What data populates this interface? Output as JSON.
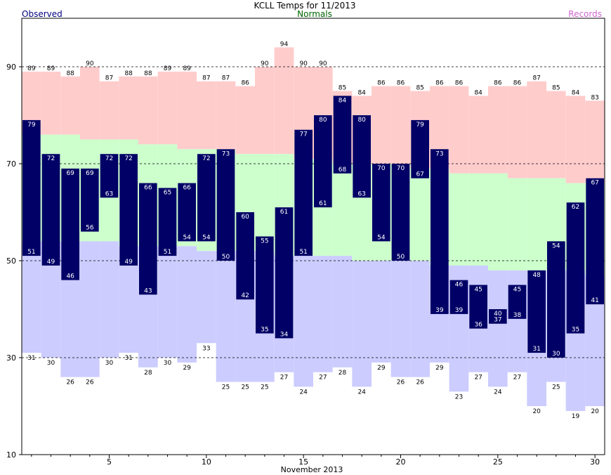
{
  "chart_data": {
    "type": "bar",
    "title": "KCLL Temps for 11/2013",
    "xlabel": "November 2013",
    "ylabel": "",
    "legend": {
      "observed": "Observed",
      "normals": "Normals",
      "records": "Records"
    },
    "colors": {
      "observed_bar": "#000066",
      "normal_band": "#ccffcc",
      "record_high_band": "#ffcccc",
      "record_low_band": "#ccccff",
      "observed_text": "#000080",
      "normals_text": "#006600",
      "records_text": "#cc66cc"
    },
    "ylim": [
      10,
      100
    ],
    "yticks": [
      10,
      30,
      50,
      70,
      90
    ],
    "xticks": [
      5,
      10,
      15,
      20,
      25,
      30
    ],
    "days": [
      1,
      2,
      3,
      4,
      5,
      6,
      7,
      8,
      9,
      10,
      11,
      12,
      13,
      14,
      15,
      16,
      17,
      18,
      19,
      20,
      21,
      22,
      23,
      24,
      25,
      26,
      27,
      28,
      29,
      30
    ],
    "observed_high": [
      79,
      72,
      69,
      69,
      72,
      72,
      66,
      65,
      66,
      72,
      73,
      60,
      55,
      61,
      77,
      80,
      84,
      80,
      70,
      70,
      79,
      73,
      46,
      45,
      40,
      45,
      48,
      54,
      62,
      67
    ],
    "observed_low": [
      51,
      49,
      46,
      56,
      63,
      49,
      43,
      51,
      54,
      54,
      50,
      42,
      35,
      34,
      51,
      61,
      68,
      63,
      54,
      50,
      67,
      39,
      39,
      36,
      37,
      38,
      31,
      30,
      35,
      41
    ],
    "record_high": [
      89,
      89,
      88,
      90,
      87,
      88,
      88,
      89,
      89,
      87,
      87,
      86,
      90,
      94,
      90,
      90,
      85,
      84,
      86,
      86,
      85,
      86,
      86,
      84,
      86,
      86,
      87,
      85,
      84,
      83
    ],
    "record_low": [
      31,
      30,
      26,
      26,
      30,
      31,
      28,
      30,
      29,
      33,
      25,
      25,
      25,
      27,
      24,
      27,
      28,
      24,
      29,
      26,
      26,
      29,
      23,
      27,
      24,
      27,
      20,
      25,
      19,
      20
    ],
    "normal_high": [
      76,
      76,
      76,
      75,
      75,
      75,
      74,
      74,
      73,
      73,
      73,
      72,
      72,
      72,
      71,
      71,
      70,
      70,
      70,
      70,
      69,
      69,
      68,
      68,
      68,
      67,
      67,
      67,
      66,
      66
    ],
    "normal_low": [
      54,
      54,
      54,
      54,
      54,
      53,
      53,
      53,
      53,
      52,
      52,
      52,
      52,
      51,
      51,
      51,
      51,
      50,
      50,
      50,
      50,
      49,
      49,
      49,
      48,
      48,
      48,
      48,
      48,
      47
    ]
  }
}
